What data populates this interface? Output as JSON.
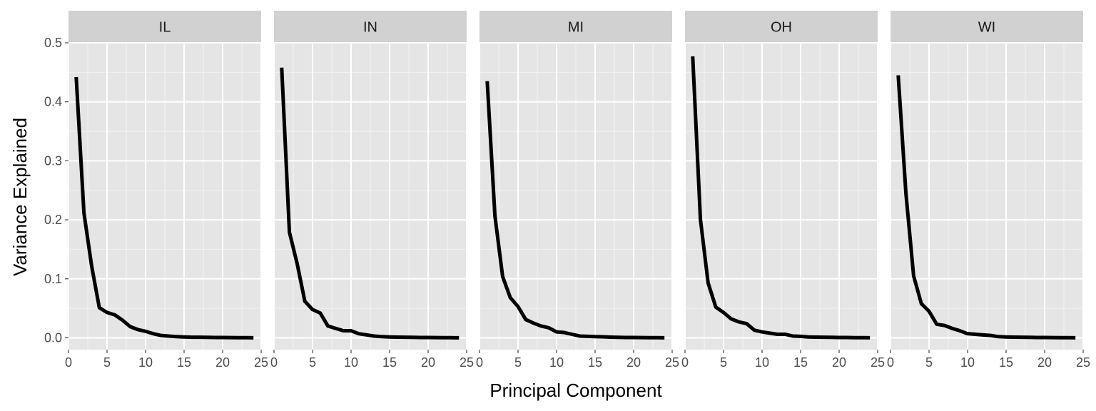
{
  "chart_data": {
    "type": "line",
    "xlabel": "Principal Component",
    "ylabel": "Variance Explained",
    "xlim": [
      0,
      25
    ],
    "ylim": [
      -0.02,
      0.5
    ],
    "x_ticks": [
      0,
      5,
      10,
      15,
      20,
      25
    ],
    "y_ticks": [
      0.0,
      0.1,
      0.2,
      0.3,
      0.4,
      0.5
    ],
    "y_tick_labels": [
      "0.0",
      "0.1",
      "0.2",
      "0.3",
      "0.4",
      "0.5"
    ],
    "grid": true,
    "line_color": "#000000",
    "panel_background": "#e5e5e5",
    "strip_background": "#d1d1d1",
    "x": [
      1,
      2,
      3,
      4,
      5,
      6,
      7,
      8,
      9,
      10,
      11,
      12,
      13,
      14,
      15,
      16,
      17,
      18,
      19,
      20,
      21,
      22,
      23,
      24
    ],
    "series": [
      {
        "name": "IL",
        "values": [
          0.442,
          0.212,
          0.122,
          0.051,
          0.043,
          0.039,
          0.03,
          0.019,
          0.014,
          0.011,
          0.007,
          0.004,
          0.003,
          0.002,
          0.0015,
          0.001,
          0.001,
          0.0008,
          0.0006,
          0.0005,
          0.0004,
          0.0003,
          0.0002,
          0.0001
        ]
      },
      {
        "name": "IN",
        "values": [
          0.458,
          0.179,
          0.126,
          0.062,
          0.048,
          0.042,
          0.02,
          0.016,
          0.012,
          0.012,
          0.007,
          0.005,
          0.003,
          0.002,
          0.0015,
          0.0012,
          0.001,
          0.0008,
          0.0006,
          0.0005,
          0.0004,
          0.0003,
          0.0002,
          0.0001
        ]
      },
      {
        "name": "MI",
        "values": [
          0.435,
          0.207,
          0.104,
          0.068,
          0.053,
          0.031,
          0.025,
          0.02,
          0.017,
          0.01,
          0.009,
          0.006,
          0.003,
          0.0025,
          0.002,
          0.0018,
          0.0012,
          0.0008,
          0.0006,
          0.0005,
          0.0004,
          0.0003,
          0.0002,
          0.0001
        ]
      },
      {
        "name": "OH",
        "values": [
          0.477,
          0.201,
          0.093,
          0.052,
          0.043,
          0.032,
          0.027,
          0.024,
          0.013,
          0.01,
          0.008,
          0.006,
          0.006,
          0.003,
          0.0025,
          0.0015,
          0.0012,
          0.001,
          0.0008,
          0.0006,
          0.0005,
          0.0003,
          0.0002,
          0.0001
        ]
      },
      {
        "name": "WI",
        "values": [
          0.445,
          0.245,
          0.105,
          0.058,
          0.045,
          0.023,
          0.021,
          0.016,
          0.012,
          0.007,
          0.006,
          0.005,
          0.004,
          0.002,
          0.0015,
          0.0012,
          0.001,
          0.0008,
          0.0006,
          0.0005,
          0.0004,
          0.0003,
          0.0002,
          0.0001
        ]
      }
    ]
  }
}
